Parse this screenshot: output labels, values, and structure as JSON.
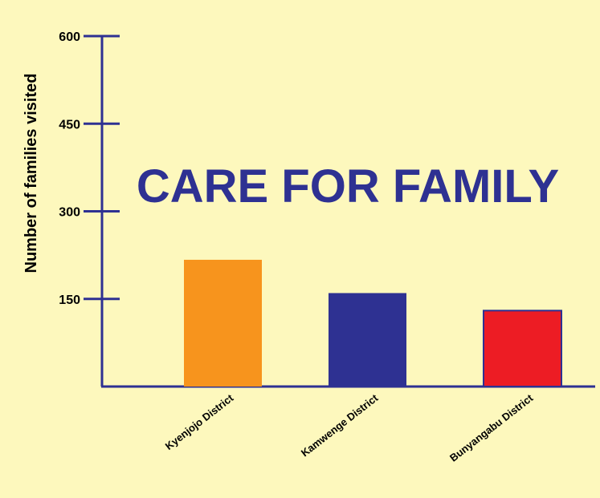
{
  "chart_data": {
    "type": "bar",
    "title": "CARE FOR FAMILY",
    "xlabel": "",
    "ylabel": "Number of families visited",
    "categories": [
      "Kyenjojo District",
      "Kamwenge District",
      "Bunyangabu District"
    ],
    "values": [
      217,
      160,
      130
    ],
    "yticks": [
      150,
      300,
      450,
      600
    ],
    "ylim": [
      0,
      600
    ],
    "grid": false,
    "legend": "none"
  },
  "colors": {
    "background": "#fdf8bd",
    "axis": "#2e3192",
    "title": "#2e3192",
    "text": "#000000",
    "bars": [
      "#f7941d",
      "#2e3192",
      "#ed1c24"
    ],
    "bar_outline": "#2e3192"
  }
}
